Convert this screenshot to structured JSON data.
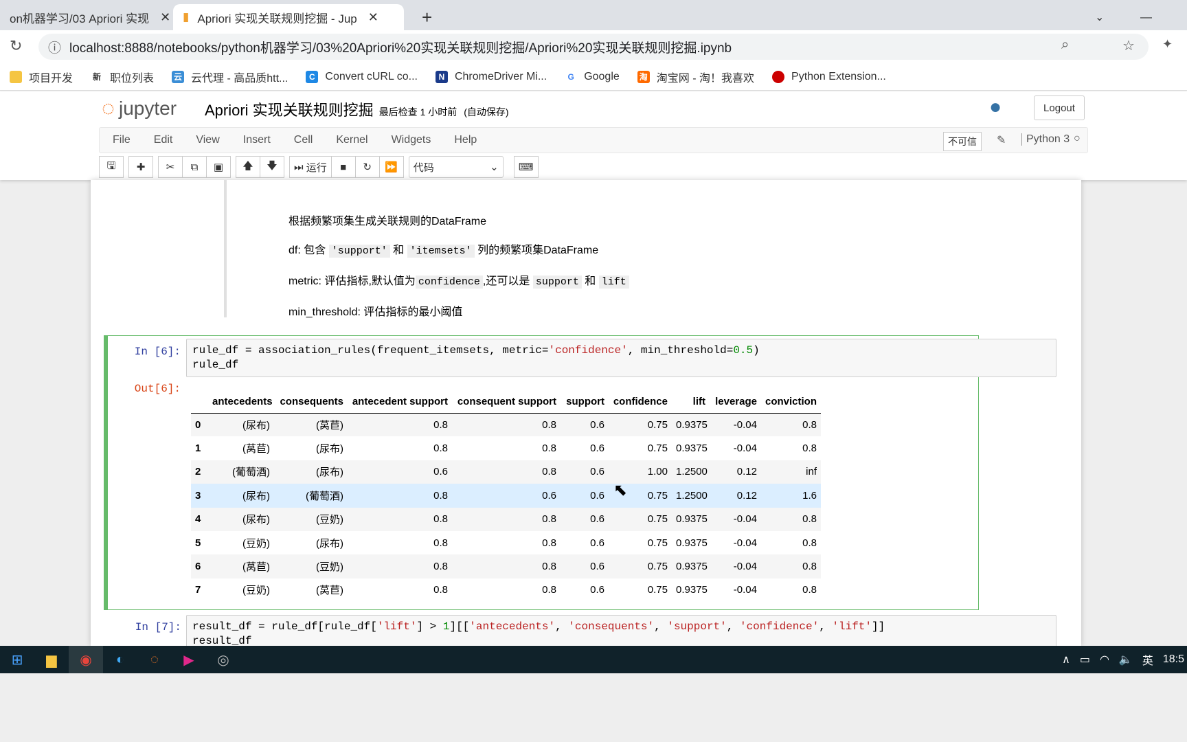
{
  "browser": {
    "tabs": [
      {
        "title": "on机器学习/03 Apriori 实现",
        "active": false
      },
      {
        "title": "Apriori 实现关联规则挖掘 - Jup",
        "active": true
      }
    ],
    "url": "localhost:8888/notebooks/python机器学习/03%20Apriori%20实现关联规则挖掘/Apriori%20实现关联规则挖掘.ipynb",
    "bookmarks": [
      "项目开发",
      "职位列表",
      "云代理 - 高品质htt...",
      "Convert cURL co...",
      "ChromeDriver Mi...",
      "Google",
      "淘宝网 - 淘！我喜欢",
      "Python Extension..."
    ]
  },
  "jupyter": {
    "logo": "jupyter",
    "title": "Apriori 实现关联规则挖掘",
    "checkpoint": "最后检查 1 小时前",
    "autosave": "(自动保存)",
    "logout": "Logout",
    "menu": [
      "File",
      "Edit",
      "View",
      "Insert",
      "Cell",
      "Kernel",
      "Widgets",
      "Help"
    ],
    "trusted": "不可信",
    "kernel": "Python 3",
    "run_label": "运行",
    "cell_type": "代码"
  },
  "markdown": {
    "line1": "根据频繁项集生成关联规则的DataFrame",
    "line2_pre": "df: 包含",
    "line2_c1": "'support'",
    "line2_mid": "和",
    "line2_c2": "'itemsets'",
    "line2_post": "列的频繁项集DataFrame",
    "line3_pre": "metric: 评估指标,默认值为",
    "line3_c1": "confidence",
    "line3_mid": ",还可以是",
    "line3_c2": "support",
    "line3_and": "和",
    "line3_c3": "lift",
    "line4": "min_threshold: 评估指标的最小阈值"
  },
  "cell6": {
    "in_prompt": "In  [6]:",
    "out_prompt": "Out[6]:",
    "code_a": "rule_df = association_rules(frequent_itemsets, metric=",
    "code_s": "'confidence'",
    "code_b": ", min_threshold=",
    "code_n": "0.5",
    "code_c": ")",
    "code_line2": "rule_df",
    "columns": [
      "",
      "antecedents",
      "consequents",
      "antecedent support",
      "consequent support",
      "support",
      "confidence",
      "lift",
      "leverage",
      "conviction"
    ],
    "rows": [
      [
        "0",
        "(尿布)",
        "(莴苣)",
        "0.8",
        "0.8",
        "0.6",
        "0.75",
        "0.9375",
        "-0.04",
        "0.8"
      ],
      [
        "1",
        "(莴苣)",
        "(尿布)",
        "0.8",
        "0.8",
        "0.6",
        "0.75",
        "0.9375",
        "-0.04",
        "0.8"
      ],
      [
        "2",
        "(葡萄酒)",
        "(尿布)",
        "0.6",
        "0.8",
        "0.6",
        "1.00",
        "1.2500",
        "0.12",
        "inf"
      ],
      [
        "3",
        "(尿布)",
        "(葡萄酒)",
        "0.8",
        "0.6",
        "0.6",
        "0.75",
        "1.2500",
        "0.12",
        "1.6"
      ],
      [
        "4",
        "(尿布)",
        "(豆奶)",
        "0.8",
        "0.8",
        "0.6",
        "0.75",
        "0.9375",
        "-0.04",
        "0.8"
      ],
      [
        "5",
        "(豆奶)",
        "(尿布)",
        "0.8",
        "0.8",
        "0.6",
        "0.75",
        "0.9375",
        "-0.04",
        "0.8"
      ],
      [
        "6",
        "(莴苣)",
        "(豆奶)",
        "0.8",
        "0.8",
        "0.6",
        "0.75",
        "0.9375",
        "-0.04",
        "0.8"
      ],
      [
        "7",
        "(豆奶)",
        "(莴苣)",
        "0.8",
        "0.8",
        "0.6",
        "0.75",
        "0.9375",
        "-0.04",
        "0.8"
      ]
    ]
  },
  "cell7": {
    "in_prompt": "In  [7]:",
    "code_a": "result_df = rule_df[rule_df[",
    "code_s1": "'lift'",
    "code_b": "] > ",
    "code_n": "1",
    "code_c": "][[",
    "code_s2": "'antecedents'",
    "code_d": ", ",
    "code_s3": "'consequents'",
    "code_s4": "'support'",
    "code_s5": "'confidence'",
    "code_s6": "'lift'",
    "code_e": "]]",
    "code_line2": "result_df"
  },
  "taskbar": {
    "ime": "英",
    "clock": "18:5"
  }
}
